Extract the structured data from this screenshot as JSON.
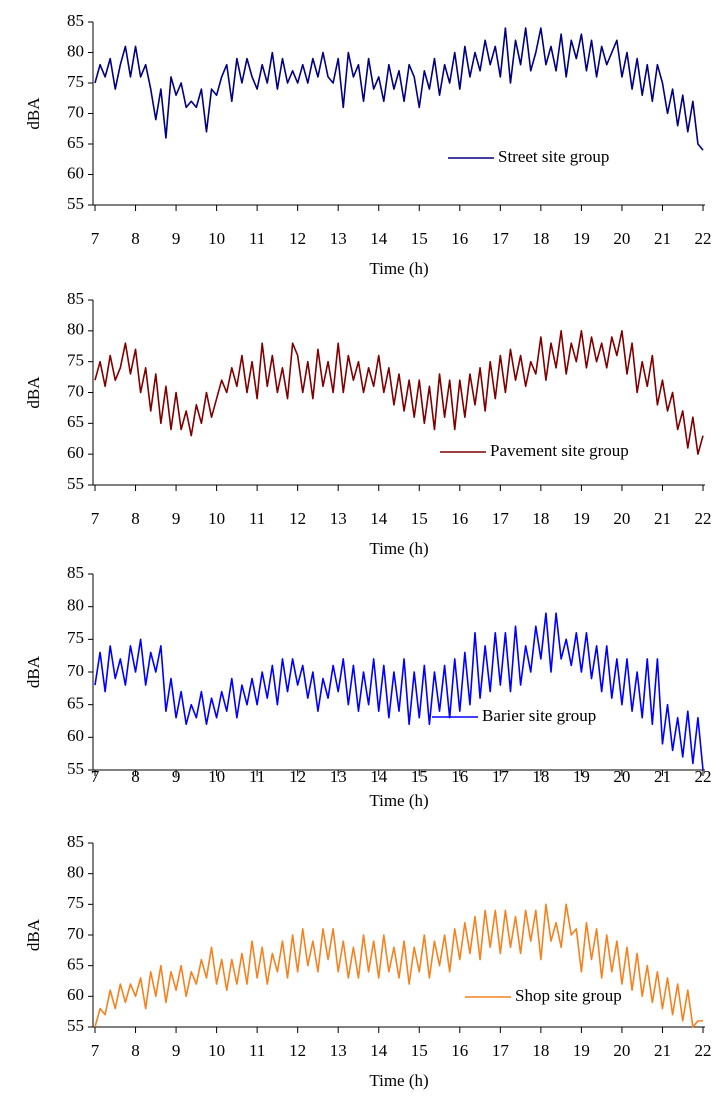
{
  "chart_data": [
    {
      "type": "line",
      "x_label": "Time (h)",
      "y_label": "dBA",
      "xlim": [
        7,
        22
      ],
      "ylim": [
        55,
        85
      ],
      "xticks": [
        7,
        8,
        9,
        10,
        11,
        12,
        13,
        14,
        15,
        16,
        17,
        18,
        19,
        20,
        21,
        22
      ],
      "yticks": [
        55,
        60,
        65,
        70,
        75,
        80,
        85
      ],
      "x": [
        7,
        7.125,
        7.25,
        7.375,
        7.5,
        7.625,
        7.75,
        7.875,
        8,
        8.125,
        8.25,
        8.375,
        8.5,
        8.625,
        8.75,
        8.875,
        9,
        9.125,
        9.25,
        9.375,
        9.5,
        9.625,
        9.75,
        9.875,
        10,
        10.125,
        10.25,
        10.375,
        10.5,
        10.625,
        10.75,
        10.875,
        11,
        11.125,
        11.25,
        11.375,
        11.5,
        11.625,
        11.75,
        11.875,
        12,
        12.125,
        12.25,
        12.375,
        12.5,
        12.625,
        12.75,
        12.875,
        13,
        13.125,
        13.25,
        13.375,
        13.5,
        13.625,
        13.75,
        13.875,
        14,
        14.125,
        14.25,
        14.375,
        14.5,
        14.625,
        14.75,
        14.875,
        15,
        15.125,
        15.25,
        15.375,
        15.5,
        15.625,
        15.75,
        15.875,
        16,
        16.125,
        16.25,
        16.375,
        16.5,
        16.625,
        16.75,
        16.875,
        17,
        17.125,
        17.25,
        17.375,
        17.5,
        17.625,
        17.75,
        17.875,
        18,
        18.125,
        18.25,
        18.375,
        18.5,
        18.625,
        18.75,
        18.875,
        19,
        19.125,
        19.25,
        19.375,
        19.5,
        19.625,
        19.75,
        19.875,
        20,
        20.125,
        20.25,
        20.375,
        20.5,
        20.625,
        20.75,
        20.875,
        21,
        21.125,
        21.25,
        21.375,
        21.5,
        21.625,
        21.75,
        21.875,
        22
      ],
      "series": [
        {
          "name": "Street site group",
          "color": "#000080",
          "values": [
            75,
            78,
            76,
            79,
            74,
            78,
            81,
            76,
            81,
            76,
            78,
            74,
            69,
            74,
            66,
            76,
            73,
            75,
            71,
            72,
            71,
            74,
            67,
            74,
            73,
            76,
            78,
            72,
            79,
            75,
            79,
            76,
            74,
            78,
            75,
            80,
            74,
            79,
            75,
            77,
            75,
            78,
            75,
            79,
            76,
            80,
            76,
            75,
            79,
            71,
            80,
            76,
            78,
            72,
            79,
            74,
            76,
            72,
            78,
            74,
            77,
            72,
            78,
            76,
            71,
            77,
            74,
            79,
            73,
            78,
            75,
            80,
            74,
            81,
            76,
            80,
            77,
            82,
            78,
            81,
            76,
            84,
            75,
            82,
            78,
            84,
            77,
            80,
            84,
            78,
            81,
            77,
            83,
            76,
            82,
            79,
            83,
            77,
            82,
            76,
            81,
            78,
            80,
            82,
            76,
            80,
            74,
            79,
            73,
            78,
            72,
            78,
            75,
            70,
            74,
            68,
            73,
            67,
            72,
            65,
            64
          ]
        }
      ]
    },
    {
      "type": "line",
      "x_label": "Time (h)",
      "y_label": "dBA",
      "xlim": [
        7,
        22
      ],
      "ylim": [
        55,
        85
      ],
      "xticks": [
        7,
        8,
        9,
        10,
        11,
        12,
        13,
        14,
        15,
        16,
        17,
        18,
        19,
        20,
        21,
        22
      ],
      "yticks": [
        55,
        60,
        65,
        70,
        75,
        80,
        85
      ],
      "x": [
        7,
        7.125,
        7.25,
        7.375,
        7.5,
        7.625,
        7.75,
        7.875,
        8,
        8.125,
        8.25,
        8.375,
        8.5,
        8.625,
        8.75,
        8.875,
        9,
        9.125,
        9.25,
        9.375,
        9.5,
        9.625,
        9.75,
        9.875,
        10,
        10.125,
        10.25,
        10.375,
        10.5,
        10.625,
        10.75,
        10.875,
        11,
        11.125,
        11.25,
        11.375,
        11.5,
        11.625,
        11.75,
        11.875,
        12,
        12.125,
        12.25,
        12.375,
        12.5,
        12.625,
        12.75,
        12.875,
        13,
        13.125,
        13.25,
        13.375,
        13.5,
        13.625,
        13.75,
        13.875,
        14,
        14.125,
        14.25,
        14.375,
        14.5,
        14.625,
        14.75,
        14.875,
        15,
        15.125,
        15.25,
        15.375,
        15.5,
        15.625,
        15.75,
        15.875,
        16,
        16.125,
        16.25,
        16.375,
        16.5,
        16.625,
        16.75,
        16.875,
        17,
        17.125,
        17.25,
        17.375,
        17.5,
        17.625,
        17.75,
        17.875,
        18,
        18.125,
        18.25,
        18.375,
        18.5,
        18.625,
        18.75,
        18.875,
        19,
        19.125,
        19.25,
        19.375,
        19.5,
        19.625,
        19.75,
        19.875,
        20,
        20.125,
        20.25,
        20.375,
        20.5,
        20.625,
        20.75,
        20.875,
        21,
        21.125,
        21.25,
        21.375,
        21.5,
        21.625,
        21.75,
        21.875,
        22
      ],
      "series": [
        {
          "name": "Pavement site group",
          "color": "#800000",
          "values": [
            72,
            75,
            71,
            76,
            72,
            74,
            78,
            73,
            77,
            70,
            74,
            67,
            73,
            65,
            71,
            64,
            70,
            64,
            67,
            63,
            68,
            65,
            70,
            66,
            69,
            72,
            70,
            74,
            71,
            76,
            70,
            75,
            69,
            78,
            71,
            76,
            70,
            74,
            69,
            78,
            76,
            70,
            75,
            69,
            77,
            71,
            75,
            70,
            78,
            70,
            76,
            72,
            75,
            70,
            74,
            71,
            76,
            70,
            74,
            68,
            73,
            67,
            72,
            66,
            72,
            65,
            71,
            64,
            73,
            66,
            72,
            64,
            72,
            66,
            73,
            68,
            74,
            67,
            75,
            69,
            76,
            70,
            77,
            72,
            76,
            71,
            75,
            73,
            79,
            72,
            78,
            74,
            80,
            73,
            78,
            75,
            80,
            74,
            79,
            75,
            78,
            74,
            79,
            76,
            80,
            73,
            78,
            70,
            75,
            71,
            76,
            68,
            72,
            67,
            70,
            64,
            67,
            61,
            66,
            60,
            63
          ]
        }
      ]
    },
    {
      "type": "line",
      "x_label": "Time (h)",
      "y_label": "dBA",
      "xlim": [
        7,
        22
      ],
      "ylim": [
        55,
        85
      ],
      "xticks": [
        7,
        8,
        9,
        10,
        11,
        12,
        13,
        14,
        15,
        16,
        17,
        18,
        19,
        20,
        21,
        22
      ],
      "yticks": [
        55,
        60,
        65,
        70,
        75,
        80,
        85
      ],
      "x": [
        7,
        7.125,
        7.25,
        7.375,
        7.5,
        7.625,
        7.75,
        7.875,
        8,
        8.125,
        8.25,
        8.375,
        8.5,
        8.625,
        8.75,
        8.875,
        9,
        9.125,
        9.25,
        9.375,
        9.5,
        9.625,
        9.75,
        9.875,
        10,
        10.125,
        10.25,
        10.375,
        10.5,
        10.625,
        10.75,
        10.875,
        11,
        11.125,
        11.25,
        11.375,
        11.5,
        11.625,
        11.75,
        11.875,
        12,
        12.125,
        12.25,
        12.375,
        12.5,
        12.625,
        12.75,
        12.875,
        13,
        13.125,
        13.25,
        13.375,
        13.5,
        13.625,
        13.75,
        13.875,
        14,
        14.125,
        14.25,
        14.375,
        14.5,
        14.625,
        14.75,
        14.875,
        15,
        15.125,
        15.25,
        15.375,
        15.5,
        15.625,
        15.75,
        15.875,
        16,
        16.125,
        16.25,
        16.375,
        16.5,
        16.625,
        16.75,
        16.875,
        17,
        17.125,
        17.25,
        17.375,
        17.5,
        17.625,
        17.75,
        17.875,
        18,
        18.125,
        18.25,
        18.375,
        18.5,
        18.625,
        18.75,
        18.875,
        19,
        19.125,
        19.25,
        19.375,
        19.5,
        19.625,
        19.75,
        19.875,
        20,
        20.125,
        20.25,
        20.375,
        20.5,
        20.625,
        20.75,
        20.875,
        21,
        21.125,
        21.25,
        21.375,
        21.5,
        21.625,
        21.75,
        21.875,
        22
      ],
      "series": [
        {
          "name": "Barier site group",
          "color": "#0000ff",
          "values": [
            68,
            73,
            67,
            74,
            69,
            72,
            68,
            74,
            70,
            75,
            68,
            73,
            70,
            74,
            64,
            69,
            63,
            67,
            62,
            65,
            63,
            67,
            62,
            66,
            63,
            67,
            64,
            69,
            63,
            68,
            65,
            69,
            65,
            70,
            66,
            71,
            65,
            72,
            67,
            72,
            68,
            71,
            66,
            70,
            64,
            69,
            66,
            71,
            67,
            72,
            65,
            71,
            64,
            70,
            65,
            72,
            64,
            71,
            63,
            70,
            64,
            72,
            62,
            70,
            63,
            71,
            62,
            70,
            64,
            71,
            63,
            72,
            64,
            73,
            65,
            76,
            66,
            74,
            67,
            76,
            68,
            76,
            67,
            77,
            68,
            74,
            70,
            77,
            72,
            79,
            70,
            79,
            72,
            75,
            71,
            76,
            70,
            76,
            69,
            74,
            67,
            74,
            66,
            72,
            65,
            72,
            64,
            70,
            63,
            72,
            62,
            72,
            59,
            65,
            58,
            63,
            57,
            64,
            56,
            63,
            55
          ]
        }
      ]
    },
    {
      "type": "line",
      "x_label": "Time (h)",
      "y_label": "dBA",
      "xlim": [
        7,
        22
      ],
      "ylim": [
        55,
        85
      ],
      "xticks": [
        7,
        8,
        9,
        10,
        11,
        12,
        13,
        14,
        15,
        16,
        17,
        18,
        19,
        20,
        21,
        22
      ],
      "yticks": [
        55,
        60,
        65,
        70,
        75,
        80,
        85
      ],
      "x": [
        7,
        7.125,
        7.25,
        7.375,
        7.5,
        7.625,
        7.75,
        7.875,
        8,
        8.125,
        8.25,
        8.375,
        8.5,
        8.625,
        8.75,
        8.875,
        9,
        9.125,
        9.25,
        9.375,
        9.5,
        9.625,
        9.75,
        9.875,
        10,
        10.125,
        10.25,
        10.375,
        10.5,
        10.625,
        10.75,
        10.875,
        11,
        11.125,
        11.25,
        11.375,
        11.5,
        11.625,
        11.75,
        11.875,
        12,
        12.125,
        12.25,
        12.375,
        12.5,
        12.625,
        12.75,
        12.875,
        13,
        13.125,
        13.25,
        13.375,
        13.5,
        13.625,
        13.75,
        13.875,
        14,
        14.125,
        14.25,
        14.375,
        14.5,
        14.625,
        14.75,
        14.875,
        15,
        15.125,
        15.25,
        15.375,
        15.5,
        15.625,
        15.75,
        15.875,
        16,
        16.125,
        16.25,
        16.375,
        16.5,
        16.625,
        16.75,
        16.875,
        17,
        17.125,
        17.25,
        17.375,
        17.5,
        17.625,
        17.75,
        17.875,
        18,
        18.125,
        18.25,
        18.375,
        18.5,
        18.625,
        18.75,
        18.875,
        19,
        19.125,
        19.25,
        19.375,
        19.5,
        19.625,
        19.75,
        19.875,
        20,
        20.125,
        20.25,
        20.375,
        20.5,
        20.625,
        20.75,
        20.875,
        21,
        21.125,
        21.25,
        21.375,
        21.5,
        21.625,
        21.75,
        21.875,
        22
      ],
      "series": [
        {
          "name": "Shop site group",
          "color": "#f5821f",
          "values": [
            55,
            58,
            57,
            61,
            58,
            62,
            59,
            62,
            60,
            63,
            58,
            64,
            60,
            65,
            59,
            64,
            61,
            65,
            60,
            64,
            62,
            66,
            63,
            68,
            62,
            66,
            61,
            66,
            62,
            67,
            62,
            69,
            63,
            68,
            62,
            67,
            64,
            69,
            63,
            70,
            64,
            71,
            65,
            69,
            64,
            71,
            66,
            71,
            64,
            69,
            63,
            68,
            63,
            70,
            64,
            69,
            63,
            70,
            64,
            68,
            63,
            69,
            62,
            68,
            64,
            70,
            63,
            69,
            65,
            70,
            64,
            71,
            66,
            72,
            67,
            73,
            66,
            74,
            68,
            74,
            67,
            74,
            68,
            73,
            67,
            74,
            69,
            74,
            66,
            75,
            69,
            72,
            68,
            75,
            70,
            71,
            64,
            72,
            66,
            71,
            63,
            70,
            64,
            69,
            62,
            68,
            61,
            67,
            60,
            65,
            59,
            64,
            58,
            63,
            57,
            62,
            56,
            61,
            55,
            56,
            56
          ]
        }
      ]
    }
  ]
}
